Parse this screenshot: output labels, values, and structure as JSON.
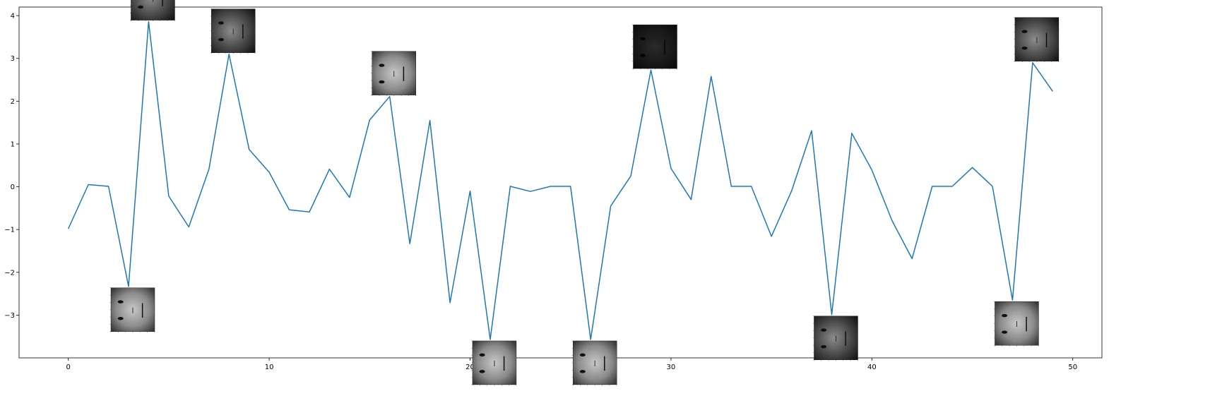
{
  "chart_data": {
    "type": "line",
    "title": "",
    "xlabel": "",
    "ylabel": "",
    "xlim": [
      -2.45,
      51.45
    ],
    "ylim": [
      -4.0,
      4.2
    ],
    "x_ticks": [
      0,
      10,
      20,
      30,
      40,
      50
    ],
    "y_ticks": [
      4,
      3,
      2,
      1,
      0,
      -1,
      -2,
      -3
    ],
    "y_tick_labels": [
      "4",
      "3",
      "2",
      "1",
      "0",
      "−1",
      "−2",
      "−3"
    ],
    "grid": false,
    "legend": "none",
    "line_color": "#1f77b4",
    "x": [
      0,
      1,
      2,
      3,
      4,
      5,
      6,
      7,
      8,
      9,
      10,
      11,
      12,
      13,
      14,
      15,
      16,
      17,
      18,
      19,
      20,
      21,
      22,
      23,
      24,
      25,
      26,
      27,
      28,
      29,
      30,
      31,
      32,
      33,
      34,
      35,
      36,
      37,
      38,
      39,
      40,
      41,
      42,
      43,
      44,
      45,
      46,
      47,
      48,
      49
    ],
    "y": [
      -0.98,
      0.05,
      0.01,
      -2.33,
      3.86,
      -0.22,
      -0.94,
      0.41,
      3.1,
      0.87,
      0.34,
      -0.54,
      -0.59,
      0.41,
      -0.25,
      1.56,
      2.11,
      -1.33,
      1.55,
      -2.71,
      -0.1,
      -3.57,
      0.01,
      -0.11,
      0.01,
      0.01,
      -3.57,
      -0.45,
      0.25,
      2.73,
      0.43,
      -0.3,
      2.58,
      0.01,
      0.01,
      -1.16,
      -0.1,
      1.31,
      -2.99,
      1.25,
      0.39,
      -0.79,
      -1.68,
      0.01,
      0.01,
      0.45,
      0.01,
      -2.65,
      2.9,
      2.23
    ],
    "thumbnails": [
      {
        "name": "face-thumb-1",
        "x": 4,
        "y": 3.86,
        "side": "top",
        "style": "dark"
      },
      {
        "name": "face-thumb-2",
        "x": 8,
        "y": 3.1,
        "side": "top",
        "style": "dark"
      },
      {
        "name": "face-thumb-3",
        "x": 16,
        "y": 2.11,
        "side": "top",
        "style": "light"
      },
      {
        "name": "face-thumb-4",
        "x": 29,
        "y": 2.73,
        "side": "top",
        "style": "black"
      },
      {
        "name": "face-thumb-5",
        "x": 48,
        "y": 2.9,
        "side": "top",
        "style": "dark"
      },
      {
        "name": "face-thumb-6",
        "x": 3,
        "y": -2.33,
        "side": "bottom",
        "style": "light"
      },
      {
        "name": "face-thumb-7",
        "x": 21,
        "y": -3.57,
        "side": "bottom",
        "style": "light"
      },
      {
        "name": "face-thumb-8",
        "x": 26,
        "y": -3.57,
        "side": "bottom",
        "style": "light"
      },
      {
        "name": "face-thumb-9",
        "x": 38,
        "y": -2.99,
        "side": "bottom",
        "style": "dark"
      },
      {
        "name": "face-thumb-10",
        "x": 47,
        "y": -2.65,
        "side": "bottom",
        "style": "light"
      }
    ]
  }
}
